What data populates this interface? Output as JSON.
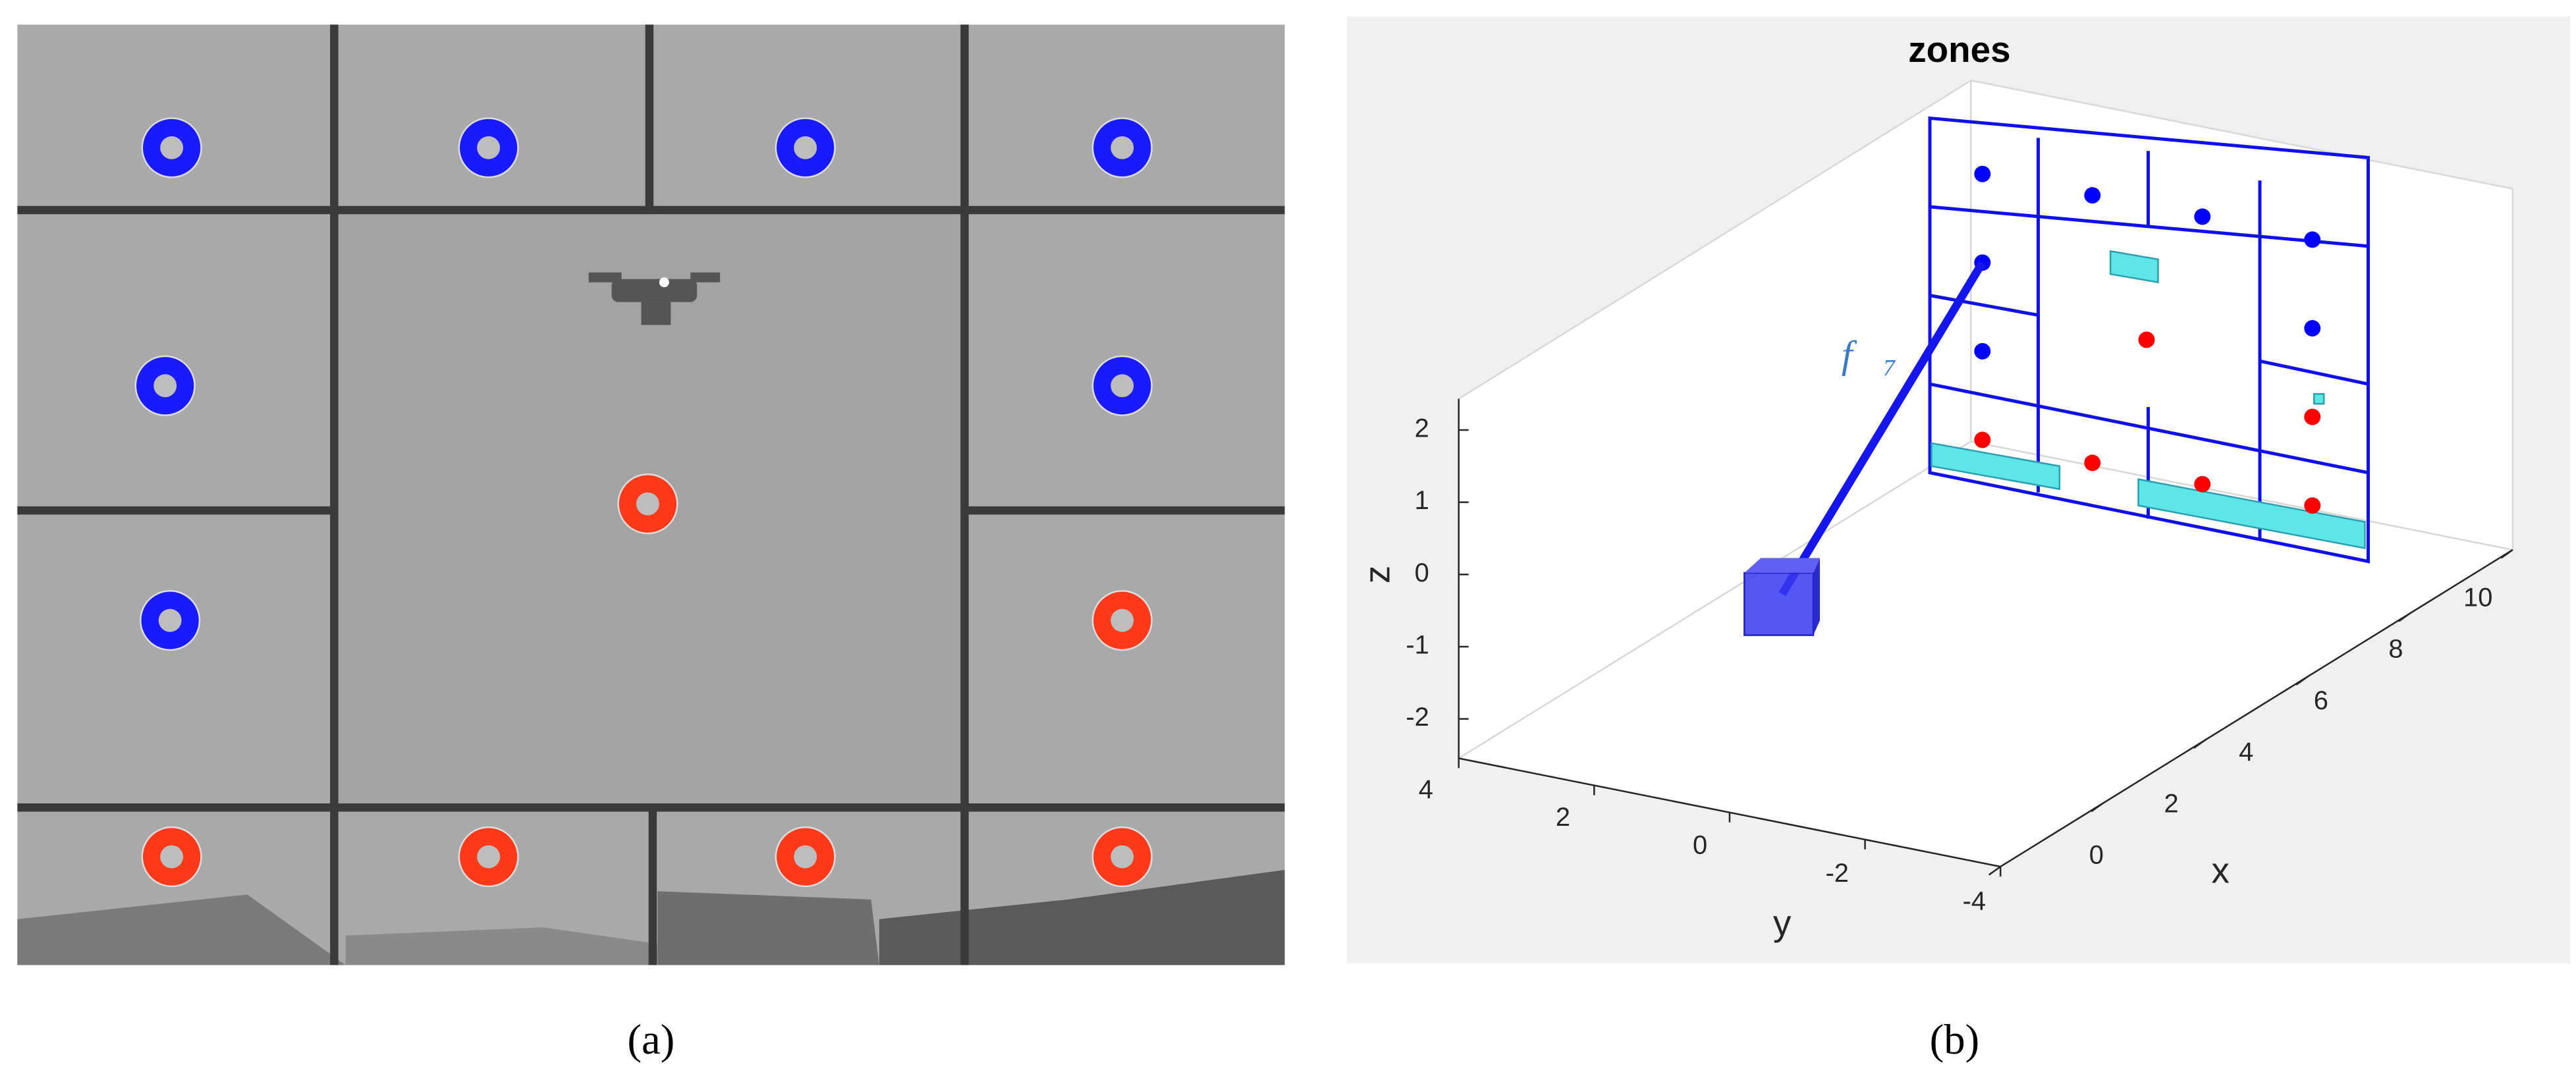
{
  "panel_a": {
    "caption": "(a)"
  },
  "panel_b": {
    "caption": "(b)",
    "title": "zones",
    "annotation": "f⃗₇",
    "x_axis": {
      "label": "x",
      "ticks": [
        0,
        2,
        4,
        6,
        8,
        10
      ]
    },
    "y_axis": {
      "label": "y",
      "ticks": [
        4,
        2,
        0,
        -2,
        -4
      ]
    },
    "z_axis": {
      "label": "z",
      "ticks": [
        2,
        1,
        0,
        -1,
        -2
      ]
    }
  }
}
